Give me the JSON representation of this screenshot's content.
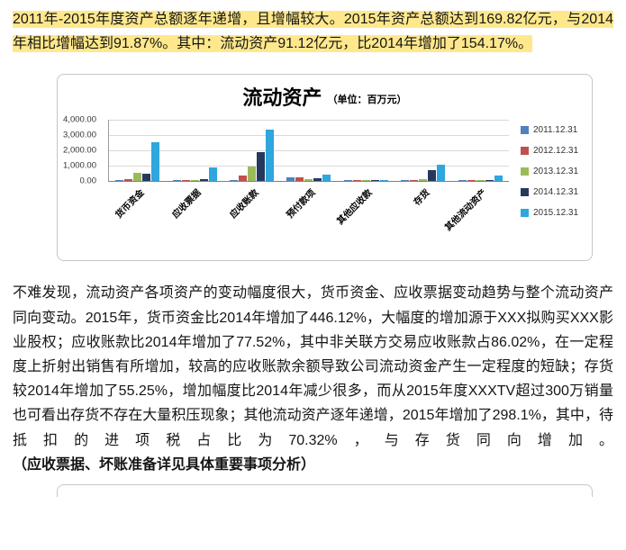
{
  "summary": {
    "highlighted_text": "2011年-2015年度资产总额逐年递增，且增幅较大。2015年资产总额达到169.82亿元，与2014年相比增幅达到91.87%。其中：流动资产91.12亿元，比2014年增加了154.17%。",
    "highlight_color": "#ffe88c"
  },
  "chart_data": {
    "type": "bar",
    "title": "流动资产",
    "unit_label": "（单位：百万元）",
    "categories": [
      "货币资金",
      "应收票据",
      "应收账款",
      "预付款项",
      "其他应收款",
      "存货",
      "其他流动资产"
    ],
    "series": [
      {
        "name": "2011.12.31",
        "color": "#4F81BD",
        "values": [
          80,
          20,
          90,
          280,
          30,
          60,
          15
        ]
      },
      {
        "name": "2012.12.31",
        "color": "#C0504D",
        "values": [
          130,
          30,
          380,
          230,
          40,
          90,
          25
        ]
      },
      {
        "name": "2013.12.31",
        "color": "#9BBB59",
        "values": [
          580,
          60,
          950,
          170,
          50,
          140,
          50
        ]
      },
      {
        "name": "2014.12.31",
        "color": "#25395F",
        "values": [
          470,
          120,
          1900,
          200,
          60,
          700,
          90
        ]
      },
      {
        "name": "2015.12.31",
        "color": "#2EA6DE",
        "values": [
          2570,
          900,
          3370,
          420,
          80,
          1090,
          360
        ]
      }
    ],
    "ylim": [
      0,
      4000
    ],
    "yticks": [
      "4,000.00",
      "3,000.00",
      "2,000.00",
      "1,000.00",
      "0.00"
    ],
    "grid": true,
    "legend_position": "right"
  },
  "analysis": {
    "paragraph": "不难发现，流动资产各项资产的变动幅度很大，货币资金、应收票据变动趋势与整个流动资产同向变动。2015年，货币资金比2014年增加了446.12%，大幅度的增加源于XXX拟购买XXX影业股权；应收账款比2014年增加了77.52%，其中非关联方交易应收账款占86.02%，在一定程度上折射出销售有所增加，较高的应收账款余额导致公司流动资金产生一定程度的短缺；存货较2014年增加了55.25%，增加幅度比2014年减少很多，而从2015年度XXXTV超过300万销量也可看出存货不存在大量积压现象；其他流动资产逐年递增，2015年增加了298.1%，其中，待抵扣的进项税占比为70.32%，与存货同向增加。",
    "note_bold": "（应收票据、坏账准备详见具体重要事项分析）"
  }
}
